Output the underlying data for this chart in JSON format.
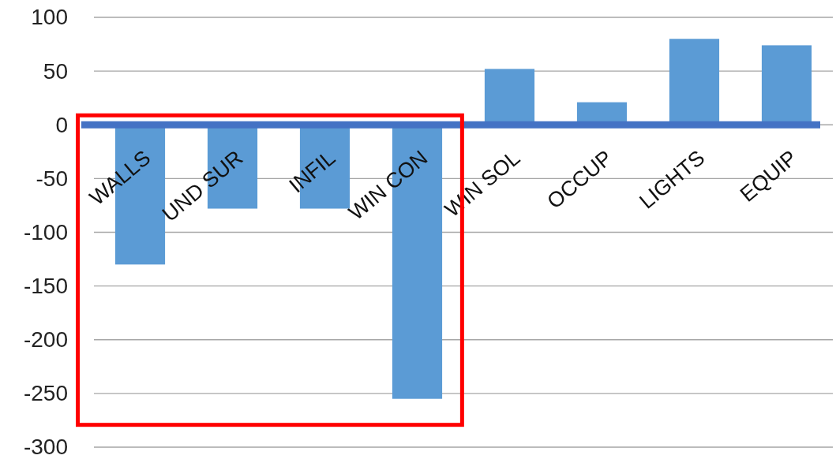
{
  "chart_data": {
    "type": "bar",
    "categories": [
      "WALLS",
      "UND SUR",
      "INFIL",
      "WIN CON",
      "WIN SOL",
      "OCCUP",
      "LIGHTS",
      "EQUIP"
    ],
    "values": [
      -130,
      -78,
      -78,
      -255,
      52,
      21,
      80,
      74
    ],
    "color": "#5b9bd5",
    "ylim": [
      -300,
      100
    ],
    "yticks": [
      -300,
      -250,
      -200,
      -150,
      -100,
      -50,
      0,
      50,
      100
    ],
    "grid": "y"
  }
}
